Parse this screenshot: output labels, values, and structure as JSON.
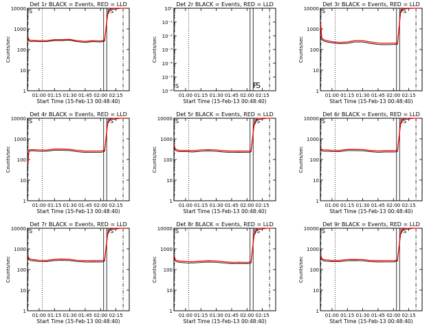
{
  "figure": {
    "x_ticks": [
      "01:00",
      "01:15",
      "01:30",
      "01:45",
      "02:00",
      "02:15"
    ],
    "y_ticks_default": [
      "1",
      "10",
      "100",
      "1000",
      "10000"
    ],
    "y_ticks_log_small": [
      "10⁰",
      "10⁻¹",
      "10⁻²",
      "10⁻³",
      "10⁻⁴",
      "10⁻⁵",
      "10⁻⁶"
    ],
    "colors": {
      "events": "#000000",
      "lld": "#ff0000",
      "background": "#ffffff"
    }
  },
  "chart_data": [
    {
      "type": "line",
      "title": "Det 1r BLACK = Events, RED = LLD",
      "xlabel": "Start Time (15-Feb-13 00:48:40)",
      "ylabel": "Counts/sec",
      "yscale": "log",
      "ylim": [
        1,
        10000
      ],
      "xlim": [
        "00:48:40",
        "02:28"
      ],
      "markers": {
        "F": "02:08",
        "S": "02:11"
      },
      "series": [
        {
          "name": "Events",
          "color": "#000000",
          "x": [
            "00:49",
            "00:50",
            "00:52",
            "00:55",
            "01:00",
            "01:07",
            "01:15",
            "01:22",
            "01:30",
            "01:37",
            "01:45",
            "01:52",
            "02:00",
            "02:02",
            "02:04",
            "02:07",
            "02:10",
            "02:13",
            "02:20",
            "02:25"
          ],
          "y": [
            350,
            260,
            240,
            250,
            240,
            240,
            270,
            270,
            280,
            240,
            220,
            240,
            230,
            240,
            260,
            5000,
            9500,
            9000,
            10000,
            10000
          ]
        },
        {
          "name": "LLD",
          "color": "#ff0000",
          "x": [
            "00:49",
            "00:50",
            "00:52",
            "00:55",
            "01:00",
            "01:07",
            "01:15",
            "01:22",
            "01:30",
            "01:37",
            "01:45",
            "01:52",
            "02:00",
            "02:02",
            "02:04",
            "02:07",
            "02:10",
            "02:13",
            "02:20",
            "02:25"
          ],
          "y": [
            420,
            300,
            280,
            280,
            270,
            270,
            300,
            300,
            310,
            270,
            250,
            270,
            260,
            270,
            300,
            5800,
            10000,
            10000,
            10000,
            10000
          ]
        }
      ]
    },
    {
      "type": "line",
      "title": "Det 2r BLACK = Events, RED = LLD",
      "xlabel": "Start Time (15-Feb-13 00:48:40)",
      "ylabel": "Counts/sec",
      "yscale": "log",
      "ylim": [
        1e-06,
        1
      ],
      "xlim": [
        "00:48:40",
        "02:28"
      ],
      "markers": {
        "F": "02:08",
        "S": "02:11"
      },
      "series": []
    },
    {
      "type": "line",
      "title": "Det 3r BLACK = Events, RED = LLD",
      "xlabel": "Start Time (15-Feb-13 00:48:40)",
      "ylabel": "Counts/sec",
      "yscale": "log",
      "ylim": [
        1,
        10000
      ],
      "xlim": [
        "00:48:40",
        "02:28"
      ],
      "markers": {
        "F": "02:08",
        "S": "02:11"
      },
      "series": [
        {
          "name": "Events",
          "color": "#000000",
          "x": [
            "00:49",
            "00:50",
            "00:52",
            "00:55",
            "01:00",
            "01:07",
            "01:15",
            "01:22",
            "01:30",
            "01:37",
            "01:45",
            "01:52",
            "02:00",
            "02:02",
            "02:04",
            "02:07",
            "02:10",
            "02:13",
            "02:20",
            "02:25"
          ],
          "y": [
            1600,
            300,
            260,
            230,
            210,
            190,
            200,
            230,
            230,
            200,
            175,
            170,
            175,
            175,
            180,
            6000,
            9800,
            9500,
            10000,
            10000
          ]
        },
        {
          "name": "LLD",
          "color": "#ff0000",
          "x": [
            "00:49",
            "00:50",
            "00:52",
            "00:55",
            "01:00",
            "01:07",
            "01:15",
            "01:22",
            "01:30",
            "01:37",
            "01:45",
            "01:52",
            "02:00",
            "02:02",
            "02:04",
            "02:07",
            "02:10",
            "02:13",
            "02:20",
            "02:25"
          ],
          "y": [
            1800,
            360,
            300,
            270,
            240,
            220,
            230,
            270,
            270,
            235,
            205,
            200,
            205,
            205,
            210,
            7000,
            10000,
            10000,
            10000,
            10000
          ]
        }
      ]
    },
    {
      "type": "line",
      "title": "Det 4r BLACK = Events, RED = LLD",
      "xlabel": "Start Time (15-Feb-13 00:48:40)",
      "ylabel": "Counts/sec",
      "yscale": "log",
      "ylim": [
        1,
        10000
      ],
      "xlim": [
        "00:48:40",
        "02:28"
      ],
      "markers": {
        "F": "02:08",
        "S": "02:11"
      },
      "series": [
        {
          "name": "Events",
          "color": "#000000",
          "x": [
            "00:49",
            "00:50",
            "00:52",
            "00:55",
            "01:00",
            "01:07",
            "01:15",
            "01:22",
            "01:30",
            "01:37",
            "01:45",
            "01:52",
            "02:00",
            "02:02",
            "02:04",
            "02:07",
            "02:10",
            "02:13",
            "02:20",
            "02:25"
          ],
          "y": [
            60,
            250,
            260,
            260,
            250,
            250,
            280,
            280,
            270,
            240,
            220,
            225,
            225,
            230,
            250,
            5500,
            9500,
            9000,
            10000,
            10000
          ]
        },
        {
          "name": "LLD",
          "color": "#ff0000",
          "x": [
            "00:49",
            "00:50",
            "00:52",
            "00:55",
            "01:00",
            "01:07",
            "01:15",
            "01:22",
            "01:30",
            "01:37",
            "01:45",
            "01:52",
            "02:00",
            "02:02",
            "02:04",
            "02:07",
            "02:10",
            "02:13",
            "02:20",
            "02:25"
          ],
          "y": [
            60,
            290,
            300,
            300,
            290,
            285,
            320,
            320,
            310,
            280,
            255,
            260,
            260,
            265,
            290,
            6200,
            10000,
            10000,
            10000,
            10000
          ]
        }
      ]
    },
    {
      "type": "line",
      "title": "Det 5r BLACK = Events, RED = LLD",
      "xlabel": "Start Time (15-Feb-13 00:48:40)",
      "ylabel": "Counts/sec",
      "yscale": "log",
      "ylim": [
        1,
        10000
      ],
      "xlim": [
        "00:48:40",
        "02:28"
      ],
      "markers": {
        "F": "02:08",
        "S": "02:11"
      },
      "series": [
        {
          "name": "Events",
          "color": "#000000",
          "x": [
            "00:49",
            "00:50",
            "00:52",
            "00:55",
            "01:00",
            "01:07",
            "01:15",
            "01:22",
            "01:30",
            "01:37",
            "01:45",
            "01:52",
            "02:00",
            "02:02",
            "02:04",
            "02:07",
            "02:10",
            "02:13",
            "02:20",
            "02:25"
          ],
          "y": [
            400,
            280,
            250,
            240,
            240,
            230,
            250,
            260,
            250,
            230,
            220,
            225,
            220,
            225,
            240,
            4500,
            9000,
            9000,
            10000,
            10000
          ]
        },
        {
          "name": "LLD",
          "color": "#ff0000",
          "x": [
            "00:49",
            "00:50",
            "00:52",
            "00:55",
            "01:00",
            "01:07",
            "01:15",
            "01:22",
            "01:30",
            "01:37",
            "01:45",
            "01:52",
            "02:00",
            "02:02",
            "02:04",
            "02:07",
            "02:10",
            "02:13",
            "02:20",
            "02:25"
          ],
          "y": [
            460,
            320,
            290,
            275,
            275,
            265,
            290,
            300,
            290,
            265,
            255,
            260,
            255,
            260,
            280,
            5200,
            10000,
            10000,
            10000,
            10000
          ]
        }
      ]
    },
    {
      "type": "line",
      "title": "Det 6r BLACK = Events, RED = LLD",
      "xlabel": "Start Time (15-Feb-13 00:48:40)",
      "ylabel": "Counts/sec",
      "yscale": "log",
      "ylim": [
        1,
        10000
      ],
      "xlim": [
        "00:48:40",
        "02:28"
      ],
      "markers": {
        "F": "02:08",
        "S": "02:11"
      },
      "series": [
        {
          "name": "Events",
          "color": "#000000",
          "x": [
            "00:49",
            "00:50",
            "00:52",
            "00:55",
            "01:00",
            "01:07",
            "01:15",
            "01:22",
            "01:30",
            "01:37",
            "01:45",
            "01:52",
            "02:00",
            "02:02",
            "02:04",
            "02:07",
            "02:10",
            "02:13",
            "02:20",
            "02:25"
          ],
          "y": [
            320,
            260,
            250,
            250,
            245,
            240,
            270,
            270,
            265,
            240,
            225,
            230,
            230,
            235,
            250,
            5000,
            9500,
            9000,
            10000,
            10000
          ]
        },
        {
          "name": "LLD",
          "color": "#ff0000",
          "x": [
            "00:49",
            "00:50",
            "00:52",
            "00:55",
            "01:00",
            "01:07",
            "01:15",
            "01:22",
            "01:30",
            "01:37",
            "01:45",
            "01:52",
            "02:00",
            "02:02",
            "02:04",
            "02:07",
            "02:10",
            "02:13",
            "02:20",
            "02:25"
          ],
          "y": [
            370,
            300,
            290,
            290,
            280,
            275,
            310,
            310,
            305,
            275,
            260,
            265,
            265,
            270,
            290,
            5800,
            10000,
            10000,
            10000,
            10000
          ]
        }
      ]
    },
    {
      "type": "line",
      "title": "Det 7r BLACK = Events, RED = LLD",
      "xlabel": "Start Time (15-Feb-13 00:48:40)",
      "ylabel": "Counts/sec",
      "yscale": "log",
      "ylim": [
        1,
        10000
      ],
      "xlim": [
        "00:48:40",
        "02:28"
      ],
      "markers": {
        "F": "02:08",
        "S": "02:11"
      },
      "series": [
        {
          "name": "Events",
          "color": "#000000",
          "x": [
            "00:49",
            "00:50",
            "00:52",
            "00:55",
            "01:00",
            "01:07",
            "01:15",
            "01:22",
            "01:30",
            "01:37",
            "01:45",
            "01:52",
            "02:00",
            "02:02",
            "02:04",
            "02:07",
            "02:10",
            "02:13",
            "02:20",
            "02:25"
          ],
          "y": [
            420,
            300,
            270,
            260,
            245,
            240,
            270,
            280,
            270,
            245,
            230,
            235,
            230,
            235,
            260,
            5200,
            9500,
            9000,
            10000,
            10000
          ]
        },
        {
          "name": "LLD",
          "color": "#ff0000",
          "x": [
            "00:49",
            "00:50",
            "00:52",
            "00:55",
            "01:00",
            "01:07",
            "01:15",
            "01:22",
            "01:30",
            "01:37",
            "01:45",
            "01:52",
            "02:00",
            "02:02",
            "02:04",
            "02:07",
            "02:10",
            "02:13",
            "02:20",
            "02:25"
          ],
          "y": [
            480,
            345,
            310,
            300,
            280,
            275,
            310,
            320,
            310,
            280,
            265,
            270,
            265,
            270,
            300,
            6000,
            10000,
            10000,
            10000,
            10000
          ]
        }
      ]
    },
    {
      "type": "line",
      "title": "Det 8r BLACK = Events, RED = LLD",
      "xlabel": "Start Time (15-Feb-13 00:48:40)",
      "ylabel": "Counts/sec",
      "yscale": "log",
      "ylim": [
        1,
        10000
      ],
      "xlim": [
        "00:48:40",
        "02:28"
      ],
      "markers": {
        "F": "02:08",
        "S": "02:11"
      },
      "series": [
        {
          "name": "Events",
          "color": "#000000",
          "x": [
            "00:49",
            "00:50",
            "00:52",
            "00:55",
            "01:00",
            "01:07",
            "01:15",
            "01:22",
            "01:30",
            "01:37",
            "01:45",
            "01:52",
            "02:00",
            "02:02",
            "02:04",
            "02:07",
            "02:10",
            "02:13",
            "02:20",
            "02:25"
          ],
          "y": [
            380,
            260,
            230,
            220,
            210,
            205,
            220,
            230,
            225,
            205,
            190,
            195,
            190,
            195,
            210,
            4500,
            9000,
            9000,
            10000,
            10000
          ]
        },
        {
          "name": "LLD",
          "color": "#ff0000",
          "x": [
            "00:49",
            "00:50",
            "00:52",
            "00:55",
            "01:00",
            "01:07",
            "01:15",
            "01:22",
            "01:30",
            "01:37",
            "01:45",
            "01:52",
            "02:00",
            "02:02",
            "02:04",
            "02:07",
            "02:10",
            "02:13",
            "02:20",
            "02:25"
          ],
          "y": [
            440,
            300,
            265,
            255,
            245,
            240,
            255,
            265,
            260,
            240,
            220,
            225,
            220,
            225,
            245,
            5200,
            10000,
            10000,
            10000,
            10000
          ]
        }
      ]
    },
    {
      "type": "line",
      "title": "Det 9r BLACK = Events, RED = LLD",
      "xlabel": "Start Time (15-Feb-13 00:48:40)",
      "ylabel": "Counts/sec",
      "yscale": "log",
      "ylim": [
        1,
        10000
      ],
      "xlim": [
        "00:48:40",
        "02:28"
      ],
      "markers": {
        "F": "02:08",
        "S": "02:11"
      },
      "series": [
        {
          "name": "Events",
          "color": "#000000",
          "x": [
            "00:49",
            "00:50",
            "00:52",
            "00:55",
            "01:00",
            "01:07",
            "01:15",
            "01:22",
            "01:30",
            "01:37",
            "01:45",
            "01:52",
            "02:00",
            "02:02",
            "02:04",
            "02:07",
            "02:10",
            "02:13",
            "02:20",
            "02:25"
          ],
          "y": [
            430,
            300,
            260,
            250,
            240,
            240,
            265,
            270,
            265,
            240,
            230,
            235,
            235,
            240,
            260,
            5000,
            9500,
            9000,
            10000,
            10000
          ]
        },
        {
          "name": "LLD",
          "color": "#ff0000",
          "x": [
            "00:49",
            "00:50",
            "00:52",
            "00:55",
            "01:00",
            "01:07",
            "01:15",
            "01:22",
            "01:30",
            "01:37",
            "01:45",
            "01:52",
            "02:00",
            "02:02",
            "02:04",
            "02:07",
            "02:10",
            "02:13",
            "02:20",
            "02:25"
          ],
          "y": [
            500,
            345,
            300,
            290,
            275,
            275,
            305,
            310,
            305,
            275,
            265,
            270,
            270,
            275,
            300,
            5800,
            10000,
            10000,
            10000,
            10000
          ]
        }
      ]
    }
  ]
}
